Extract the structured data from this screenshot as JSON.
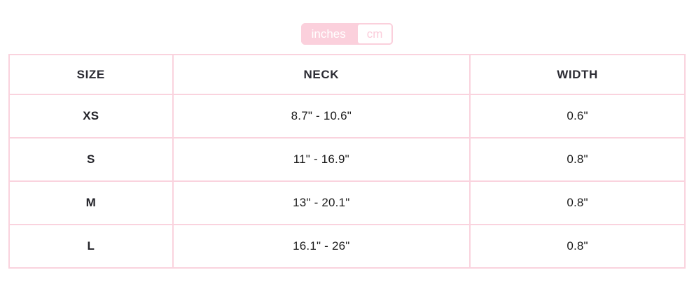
{
  "toggle": {
    "options": [
      {
        "label": "inches",
        "active": true
      },
      {
        "label": "cm",
        "active": false
      }
    ]
  },
  "table": {
    "headers": [
      "SIZE",
      "NECK",
      "WIDTH"
    ],
    "rows": [
      {
        "size": "XS",
        "neck": "8.7\" - 10.6\"",
        "width": "0.6\""
      },
      {
        "size": "S",
        "neck": "11\" - 16.9\"",
        "width": "0.8\""
      },
      {
        "size": "M",
        "neck": "13\" - 20.1\"",
        "width": "0.8\""
      },
      {
        "size": "L",
        "neck": "16.1\" - 26\"",
        "width": "0.8\""
      }
    ]
  },
  "colors": {
    "accent_pink": "#fbd0dc",
    "border_pink": "#fad3de",
    "header_text": "#2c2c34",
    "cell_text": "#1b1b1b"
  }
}
